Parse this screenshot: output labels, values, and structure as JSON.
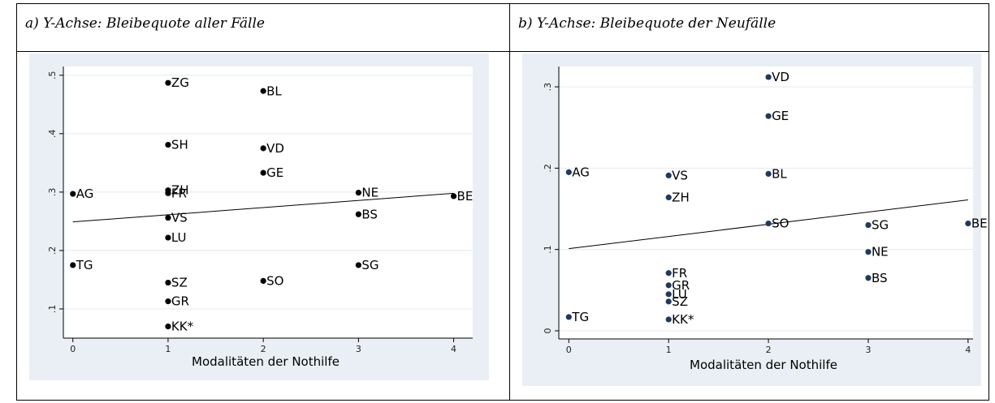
{
  "panels": [
    {
      "heading": "a) Y-Achse: Bleibequote aller Fälle"
    },
    {
      "heading": "b) Y-Achse: Bleibequote der Neufälle"
    }
  ],
  "chart_data": [
    {
      "type": "scatter",
      "title": "a) Y-Achse: Bleibequote aller Fälle",
      "xlabel": "Modalitäten der Nothilfe",
      "ylabel": "",
      "xlim": [
        -0.1,
        4.2
      ],
      "ylim": [
        0.05,
        0.515
      ],
      "xticks": [
        0,
        1,
        2,
        3,
        4
      ],
      "xtick_labels": [
        "0",
        "1",
        "2",
        "3",
        "4"
      ],
      "yticks": [
        0.1,
        0.2,
        0.3,
        0.4,
        0.5
      ],
      "ytick_labels": [
        ".1",
        ".2",
        ".3",
        ".4",
        ".5"
      ],
      "point_color": "#000000",
      "grid": true,
      "points": [
        {
          "label": "ZG",
          "x": 1,
          "y": 0.487
        },
        {
          "label": "BL",
          "x": 2,
          "y": 0.473
        },
        {
          "label": "SH",
          "x": 1,
          "y": 0.381
        },
        {
          "label": "VD",
          "x": 2,
          "y": 0.375
        },
        {
          "label": "GE",
          "x": 2,
          "y": 0.333
        },
        {
          "label": "ZH",
          "x": 1,
          "y": 0.303
        },
        {
          "label": "FR",
          "x": 1,
          "y": 0.298
        },
        {
          "label": "AG",
          "x": 0,
          "y": 0.297
        },
        {
          "label": "NE",
          "x": 3,
          "y": 0.299
        },
        {
          "label": "BE",
          "x": 4,
          "y": 0.293
        },
        {
          "label": "BS",
          "x": 3,
          "y": 0.262
        },
        {
          "label": "VS",
          "x": 1,
          "y": 0.256
        },
        {
          "label": "LU",
          "x": 1,
          "y": 0.222
        },
        {
          "label": "TG",
          "x": 0,
          "y": 0.175
        },
        {
          "label": "SG",
          "x": 3,
          "y": 0.175
        },
        {
          "label": "SO",
          "x": 2,
          "y": 0.148
        },
        {
          "label": "SZ",
          "x": 1,
          "y": 0.145
        },
        {
          "label": "GR",
          "x": 1,
          "y": 0.113
        },
        {
          "label": "KK*",
          "x": 1,
          "y": 0.07
        }
      ],
      "fit_line": [
        [
          0,
          0.249
        ],
        [
          4,
          0.298
        ]
      ]
    },
    {
      "type": "scatter",
      "title": "b) Y-Achse: Bleibequote der Neufälle",
      "xlabel": "Modalitäten der Nothilfe",
      "ylabel": "",
      "xlim": [
        -0.1,
        4.05
      ],
      "ylim": [
        -0.01,
        0.325
      ],
      "xticks": [
        0,
        1,
        2,
        3,
        4
      ],
      "xtick_labels": [
        "0",
        "1",
        "2",
        "3",
        "4"
      ],
      "yticks": [
        0,
        0.1,
        0.2,
        0.3
      ],
      "ytick_labels": [
        "0",
        ".1",
        ".2",
        ".3"
      ],
      "point_color": "#1f3a5f",
      "grid": true,
      "points": [
        {
          "label": "VD",
          "x": 2,
          "y": 0.312
        },
        {
          "label": "GE",
          "x": 2,
          "y": 0.264
        },
        {
          "label": "AG",
          "x": 0,
          "y": 0.195
        },
        {
          "label": "VS",
          "x": 1,
          "y": 0.191
        },
        {
          "label": "BL",
          "x": 2,
          "y": 0.193
        },
        {
          "label": "ZH",
          "x": 1,
          "y": 0.164
        },
        {
          "label": "SO",
          "x": 2,
          "y": 0.132
        },
        {
          "label": "SG",
          "x": 3,
          "y": 0.13
        },
        {
          "label": "BE",
          "x": 4,
          "y": 0.132
        },
        {
          "label": "NE",
          "x": 3,
          "y": 0.097
        },
        {
          "label": "FR",
          "x": 1,
          "y": 0.071
        },
        {
          "label": "BS",
          "x": 3,
          "y": 0.065
        },
        {
          "label": "GR",
          "x": 1,
          "y": 0.056
        },
        {
          "label": "LU",
          "x": 1,
          "y": 0.045
        },
        {
          "label": "SZ",
          "x": 1,
          "y": 0.036
        },
        {
          "label": "TG",
          "x": 0,
          "y": 0.017
        },
        {
          "label": "KK*",
          "x": 1,
          "y": 0.014
        }
      ],
      "fit_line": [
        [
          0,
          0.101
        ],
        [
          4,
          0.161
        ]
      ]
    }
  ]
}
